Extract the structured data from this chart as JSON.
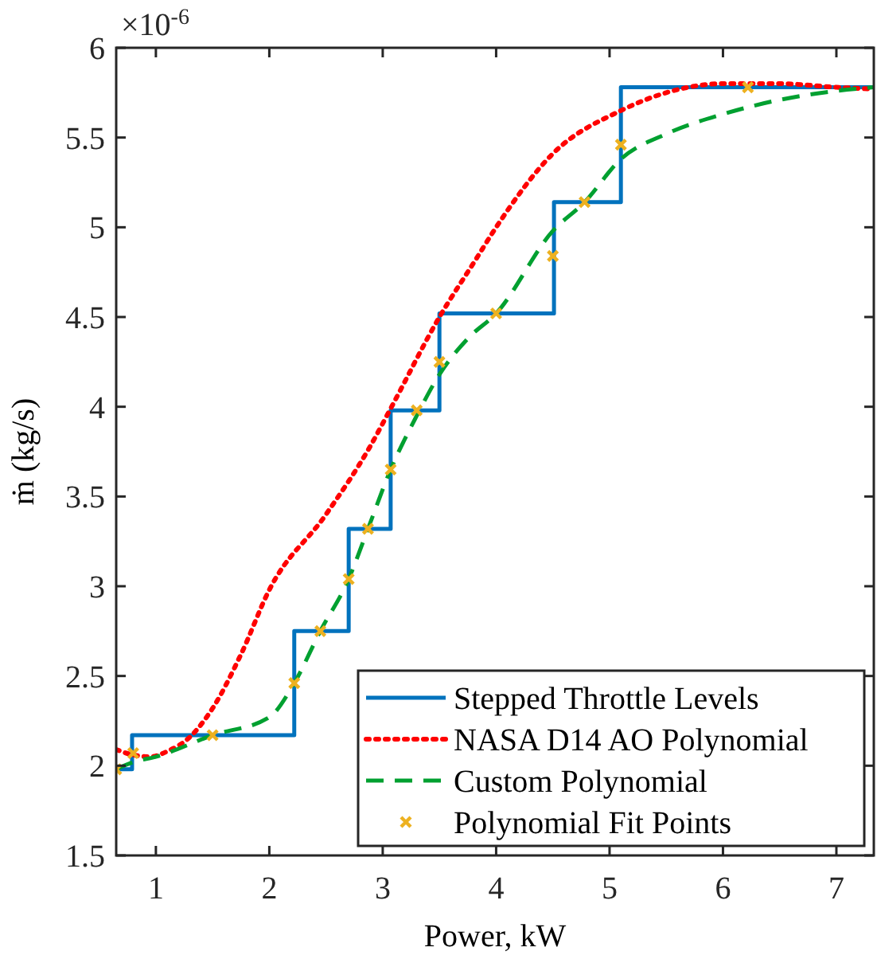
{
  "chart_data": {
    "type": "line",
    "xlabel": "Power, kW",
    "ylabel": "ṁ (kg/s)",
    "annotations": [
      "×10$^{-6}$"
    ],
    "xlim": [
      0.65,
      7.33
    ],
    "xticks": [
      1,
      2,
      3,
      4,
      5,
      6,
      7
    ],
    "ylim": [
      1.5,
      6
    ],
    "yticks": [
      1.5,
      2,
      2.5,
      3,
      3.5,
      4,
      4.5,
      5,
      5.5,
      6
    ],
    "legend": "bottom right",
    "series": [
      {
        "name": "Stepped Throttle Levels",
        "type": "step",
        "color": "#0072bd",
        "line_style": "solid",
        "x": [
          0.65,
          0.79,
          2.22,
          2.7,
          3.07,
          3.5,
          4.51,
          5.1,
          7.33
        ],
        "values": [
          1.98,
          2.17,
          2.75,
          3.32,
          3.98,
          4.52,
          5.14,
          5.78,
          5.78
        ]
      },
      {
        "name": "NASA D14 AO Polynomial",
        "color": "#ff0000",
        "line_style": "dotted",
        "x": [
          0.65,
          0.8,
          0.95,
          1.1,
          1.3,
          1.5,
          1.75,
          2,
          2.5,
          2.89,
          3.07,
          3.5,
          3.82,
          4,
          4.5,
          5.1,
          5.5,
          6,
          6.5,
          7,
          7.33
        ],
        "values": [
          2.09,
          2.06,
          2.05,
          2.08,
          2.16,
          2.32,
          2.62,
          2.98,
          3.4,
          3.78,
          3.99,
          4.5,
          4.82,
          5,
          5.41,
          5.65,
          5.75,
          5.8,
          5.8,
          5.78,
          5.77
        ]
      },
      {
        "name": "Custom Polynomial",
        "color": "#00a030",
        "line_style": "dashed",
        "x": [
          0.65,
          0.8,
          1,
          1.5,
          2,
          2.22,
          2.45,
          2.7,
          2.87,
          3.07,
          3.3,
          3.5,
          3.75,
          4,
          4.5,
          4.78,
          5.1,
          5.5,
          6,
          6.5,
          7,
          7.33
        ],
        "values": [
          1.98,
          2.02,
          2.05,
          2.17,
          2.27,
          2.46,
          2.75,
          3.04,
          3.32,
          3.65,
          3.95,
          4.18,
          4.38,
          4.52,
          4.98,
          5.14,
          5.38,
          5.52,
          5.63,
          5.71,
          5.76,
          5.78
        ]
      },
      {
        "name": "Polynomial Fit Points",
        "type": "scatter",
        "color": "#edb120",
        "marker": "cross",
        "x": [
          0.65,
          0.8,
          1.5,
          2.22,
          2.45,
          2.7,
          2.87,
          3.07,
          3.3,
          3.5,
          4,
          4.5,
          4.78,
          5.1,
          6.22
        ],
        "values": [
          1.98,
          2.07,
          2.17,
          2.46,
          2.75,
          3.04,
          3.32,
          3.65,
          3.98,
          4.25,
          4.52,
          4.84,
          5.14,
          5.46,
          5.78
        ]
      }
    ]
  }
}
